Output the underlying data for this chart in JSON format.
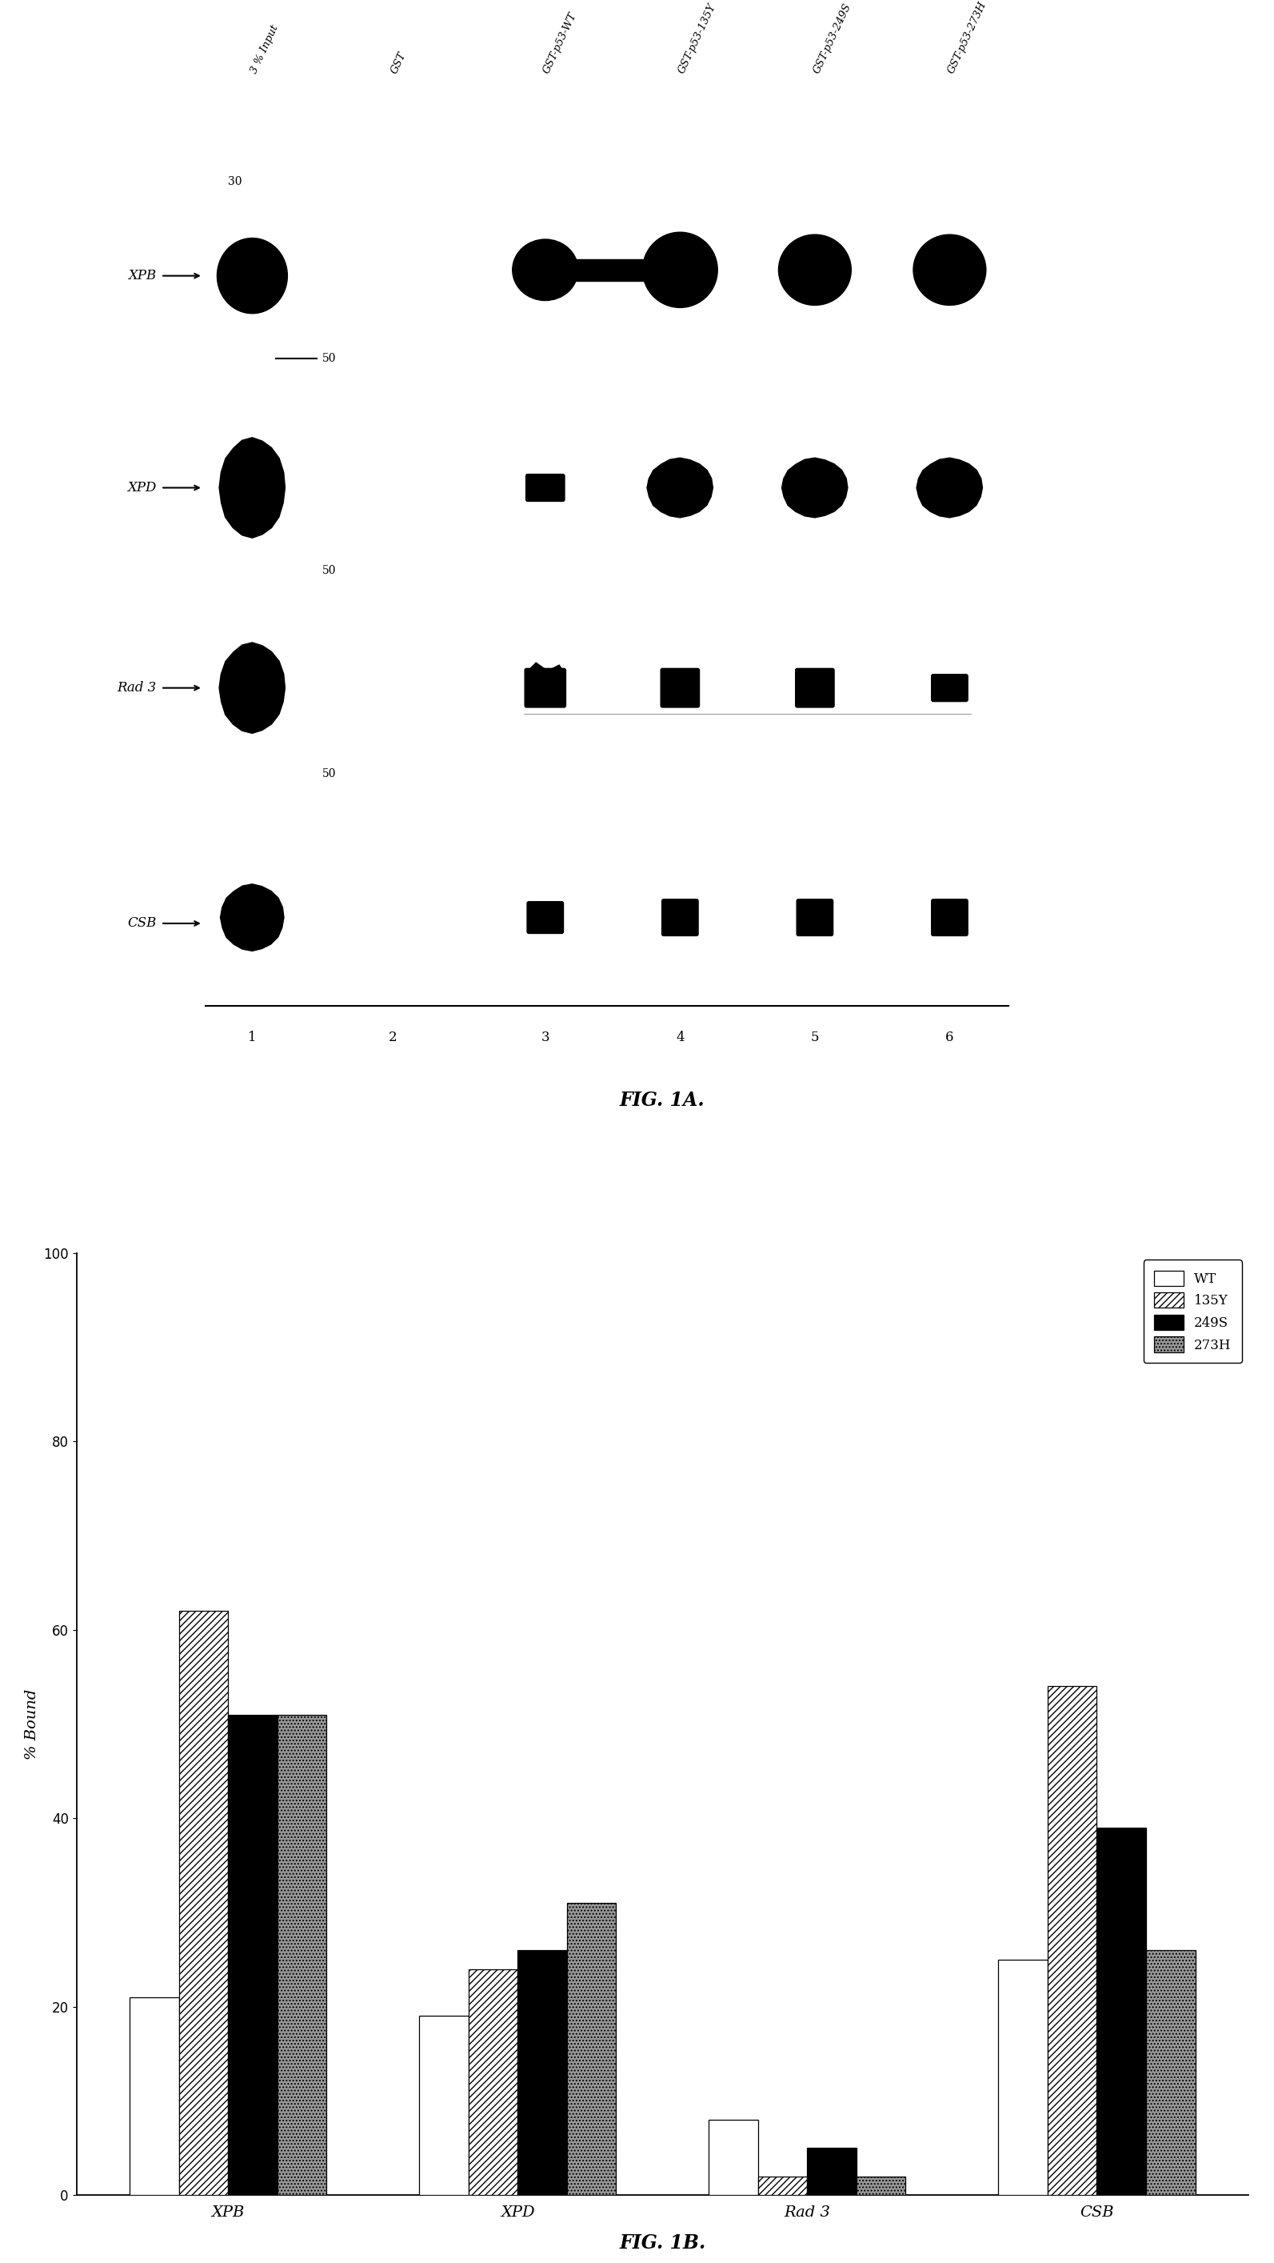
{
  "fig1b": {
    "categories": [
      "XPB",
      "XPD",
      "Rad 3",
      "CSB"
    ],
    "series": {
      "WT": [
        21,
        19,
        8,
        25
      ],
      "135Y": [
        62,
        24,
        2,
        54
      ],
      "249S": [
        51,
        26,
        5,
        39
      ],
      "273H": [
        51,
        31,
        2,
        26
      ]
    },
    "legend_labels": [
      "WT",
      "135Y",
      "249S",
      "273H"
    ],
    "ylabel": "% Bound",
    "ylim": [
      0,
      100
    ],
    "yticks": [
      0,
      20,
      40,
      60,
      80,
      100
    ],
    "title": "FIG. 1B.",
    "bar_width": 0.17,
    "hatches": [
      "",
      "////",
      "",
      "...."
    ],
    "facecolors": [
      "white",
      "white",
      "black",
      "#999999"
    ]
  },
  "fig1a": {
    "lane_labels": [
      "3 % Input",
      "GST",
      "GST-p53-WT",
      "GST-p53-135Y",
      "GST-p53-249S",
      "GST-p53-273H"
    ],
    "lane_numbers": [
      "1",
      "2",
      "3",
      "4",
      "5",
      "6"
    ],
    "row_labels": [
      "XPB",
      "XPD",
      "Rad 3",
      "CSB"
    ],
    "marker_label": "50",
    "marker_30": "30",
    "title": "FIG. 1A."
  },
  "background_color": "#ffffff",
  "text_color": "#000000"
}
